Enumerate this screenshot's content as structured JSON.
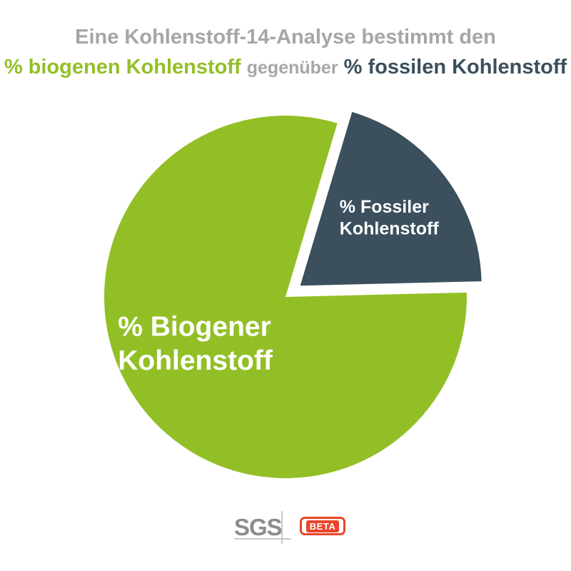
{
  "header": {
    "line1": "Eine Kohlenstoff-14-Analyse bestimmt den",
    "line2_bio": "% biogenen Kohlenstoff",
    "line2_mid": "gegenüber",
    "line2_fos": "% fossilen Kohlenstoff"
  },
  "chart_data": {
    "type": "pie",
    "title": "",
    "slices": [
      {
        "label_lines": [
          "% Fossiler",
          "Kohlenstoff"
        ],
        "value": 20,
        "color": "#3b4f5c",
        "exploded": true
      },
      {
        "label_lines": [
          "% Biogener",
          "Kohlenstoff"
        ],
        "value": 80,
        "color": "#93bf26",
        "exploded": false
      }
    ],
    "legend": "none",
    "grid": false
  },
  "logos": {
    "sgs": "SGS",
    "beta": "BETA"
  },
  "colors": {
    "biogenic": "#93bf26",
    "fossil": "#3b4f5c",
    "heading_gray": "#a6a6a6",
    "beta_red": "#e8452a"
  }
}
